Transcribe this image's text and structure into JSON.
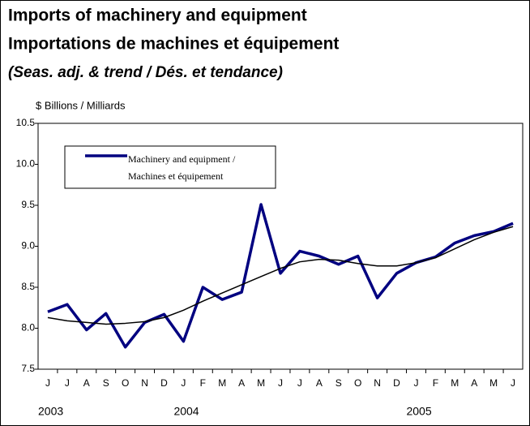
{
  "chart_data": {
    "type": "line",
    "title": "Imports of machinery and equipment",
    "title2": "Importations de machines et équipement",
    "subtitle": "(Seas. adj. & trend / Dés. et tendance)",
    "y_axis_label": "$ Billions / Milliards",
    "categories": [
      "J",
      "J",
      "A",
      "S",
      "O",
      "N",
      "D",
      "J",
      "F",
      "M",
      "A",
      "M",
      "J",
      "J",
      "A",
      "S",
      "O",
      "N",
      "D",
      "J",
      "F",
      "M",
      "A",
      "M",
      "J"
    ],
    "years": [
      {
        "label": "2003",
        "start": 0
      },
      {
        "label": "2004",
        "start": 7
      },
      {
        "label": "2005",
        "start": 19
      }
    ],
    "series": [
      {
        "name": "Machinery and equipment / Machines et équipement",
        "color": "#000080",
        "values": [
          8.2,
          8.29,
          7.98,
          8.18,
          7.77,
          8.07,
          8.17,
          7.84,
          8.5,
          8.35,
          8.44,
          9.51,
          8.67,
          8.94,
          8.88,
          8.78,
          8.88,
          8.37,
          8.67,
          8.8,
          8.87,
          9.04,
          9.13,
          9.18,
          9.28
        ]
      },
      {
        "color": "#000000",
        "values": [
          8.13,
          8.09,
          8.07,
          8.05,
          8.06,
          8.08,
          8.13,
          8.22,
          8.33,
          8.43,
          8.53,
          8.63,
          8.73,
          8.81,
          8.84,
          8.83,
          8.79,
          8.76,
          8.76,
          8.8,
          8.86,
          8.97,
          9.08,
          9.17,
          9.24
        ]
      }
    ],
    "ylim": [
      7.5,
      10.5
    ],
    "yticks": [
      7.5,
      {
        "value": 8.0,
        "label": "8.0"
      },
      8.5,
      {
        "value": 9.0,
        "label": "9.0"
      },
      9.5,
      {
        "value": 10.0,
        "label": "10.0"
      },
      10.5
    ],
    "grid": false
  }
}
